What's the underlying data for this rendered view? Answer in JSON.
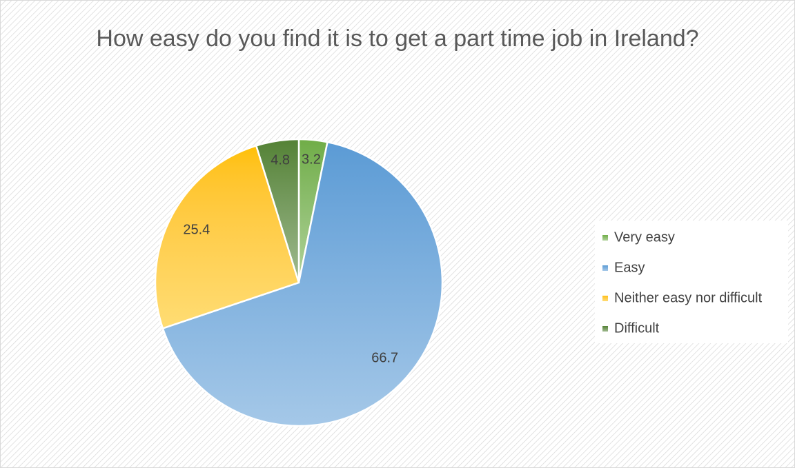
{
  "chart_data": {
    "type": "pie",
    "title": "How easy do you find it is to get a part time job in Ireland?",
    "categories": [
      "Very easy",
      "Easy",
      "Neither easy nor difficult",
      "Difficult"
    ],
    "values": [
      3.2,
      66.7,
      25.4,
      4.8
    ],
    "colors": [
      "#70ad47",
      "#5b9bd5",
      "#ffc000",
      "#548235"
    ],
    "legend": "right"
  }
}
